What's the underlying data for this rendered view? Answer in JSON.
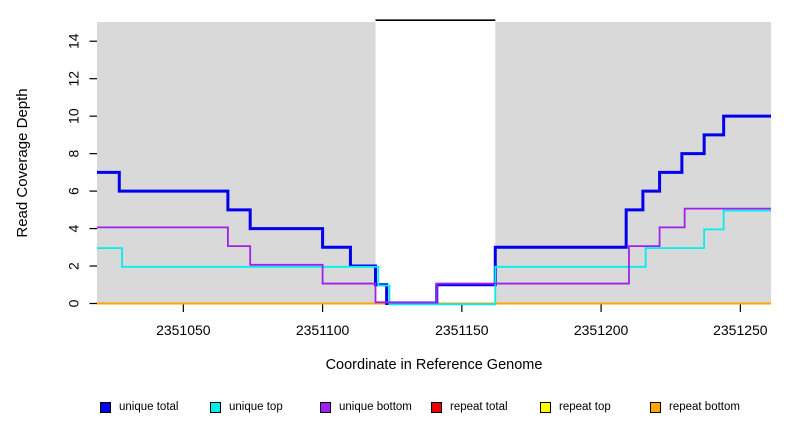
{
  "chart_data": {
    "type": "line",
    "subtype": "step",
    "title": "",
    "xlabel": "Coordinate in Reference Genome",
    "ylabel": "Read Coverage Depth",
    "xlim": [
      2351019,
      2351261
    ],
    "ylim": [
      0,
      15
    ],
    "xticks": [
      2351050,
      2351100,
      2351150,
      2351200,
      2351250
    ],
    "yticks": [
      0,
      2,
      4,
      6,
      8,
      10,
      12,
      14
    ],
    "plot_background": "#D9D9D9",
    "gap_region": {
      "from": 2351119,
      "to": 2351162,
      "fill": "#FFFFFF",
      "top_border_color": "#000000"
    },
    "grid": "off",
    "series": [
      {
        "name": "unique total",
        "color": "#0000EE",
        "line_width": 3,
        "steps": [
          [
            2351019,
            7
          ],
          [
            2351027,
            6
          ],
          [
            2351066,
            5
          ],
          [
            2351074,
            4
          ],
          [
            2351100,
            3
          ],
          [
            2351110,
            2
          ],
          [
            2351119,
            1
          ],
          [
            2351123,
            0
          ],
          [
            2351141,
            1
          ],
          [
            2351162,
            3
          ],
          [
            2351209,
            5
          ],
          [
            2351215,
            6
          ],
          [
            2351221,
            7
          ],
          [
            2351229,
            8
          ],
          [
            2351237,
            9
          ],
          [
            2351244,
            10
          ]
        ]
      },
      {
        "name": "unique top",
        "color": "#00EEEE",
        "line_width": 1.8,
        "steps": [
          [
            2351019,
            3
          ],
          [
            2351028,
            2
          ],
          [
            2351120,
            1
          ],
          [
            2351124,
            0
          ],
          [
            2351162,
            2
          ],
          [
            2351216,
            3
          ],
          [
            2351237,
            4
          ],
          [
            2351244,
            5
          ]
        ]
      },
      {
        "name": "unique bottom",
        "color": "#A020F0",
        "line_width": 1.8,
        "steps": [
          [
            2351019,
            4
          ],
          [
            2351066,
            3
          ],
          [
            2351074,
            2
          ],
          [
            2351100,
            1
          ],
          [
            2351119,
            0
          ],
          [
            2351141,
            1
          ],
          [
            2351210,
            3
          ],
          [
            2351221,
            4
          ],
          [
            2351230,
            5
          ]
        ]
      },
      {
        "name": "repeat total",
        "color": "#EE0000",
        "line_width": 1.6,
        "steps": [
          [
            2351019,
            0
          ]
        ]
      },
      {
        "name": "repeat top",
        "color": "#FFFF00",
        "line_width": 1.6,
        "steps": [
          [
            2351019,
            0
          ]
        ]
      },
      {
        "name": "repeat bottom",
        "color": "#FFA500",
        "line_width": 2,
        "steps": [
          [
            2351019,
            0
          ]
        ]
      }
    ],
    "legend": {
      "position": "bottom",
      "items": [
        {
          "label": "unique total",
          "color": "#0000EE"
        },
        {
          "label": "unique top",
          "color": "#00EEEE"
        },
        {
          "label": "unique bottom",
          "color": "#A020F0"
        },
        {
          "label": "repeat total",
          "color": "#EE0000"
        },
        {
          "label": "repeat top",
          "color": "#FFFF00"
        },
        {
          "label": "repeat bottom",
          "color": "#FFA500"
        }
      ]
    }
  }
}
